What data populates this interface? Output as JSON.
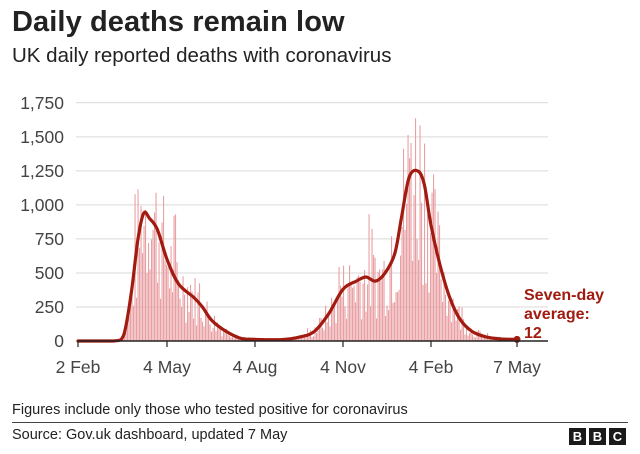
{
  "title": "Daily deaths remain low",
  "subtitle": "UK daily reported deaths with coronavirus",
  "note": "Figures include only those who tested positive for coronavirus",
  "source": "Source: Gov.uk dashboard, updated 7 May",
  "brand": [
    "B",
    "B",
    "C"
  ],
  "colors": {
    "bar": "#e8a0a3",
    "line": "#a11b10",
    "grid": "#d9d9d9",
    "axis": "#222222"
  },
  "chart_data": {
    "type": "bar",
    "title": "Daily deaths remain low",
    "subtitle": "UK daily reported deaths with coronavirus",
    "x_tick_labels": [
      "2 Feb",
      "4 May",
      "4 Aug",
      "4 Nov",
      "4 Feb",
      "7 May"
    ],
    "y_tick_labels": [
      "0",
      "250",
      "500",
      "750",
      "1,000",
      "1,250",
      "1,500",
      "1,750"
    ],
    "ylim": [
      0,
      1800
    ],
    "grid": "horizontal",
    "annotation": {
      "lines": [
        "Seven-day",
        "average:",
        "12"
      ]
    },
    "series": [
      {
        "name": "Daily deaths",
        "type": "bar"
      },
      {
        "name": "Seven-day average",
        "type": "line",
        "keypoints": [
          [
            "2020-02-02",
            0
          ],
          [
            "2020-03-10",
            0
          ],
          [
            "2020-03-20",
            40
          ],
          [
            "2020-03-28",
            350
          ],
          [
            "2020-04-04",
            750
          ],
          [
            "2020-04-10",
            940
          ],
          [
            "2020-04-16",
            900
          ],
          [
            "2020-04-24",
            820
          ],
          [
            "2020-05-04",
            600
          ],
          [
            "2020-05-16",
            420
          ],
          [
            "2020-06-01",
            320
          ],
          [
            "2020-06-10",
            250
          ],
          [
            "2020-06-20",
            150
          ],
          [
            "2020-07-05",
            70
          ],
          [
            "2020-07-20",
            20
          ],
          [
            "2020-08-04",
            12
          ],
          [
            "2020-09-01",
            10
          ],
          [
            "2020-09-20",
            30
          ],
          [
            "2020-10-05",
            70
          ],
          [
            "2020-10-20",
            200
          ],
          [
            "2020-11-04",
            380
          ],
          [
            "2020-11-18",
            440
          ],
          [
            "2020-11-28",
            470
          ],
          [
            "2020-12-08",
            440
          ],
          [
            "2020-12-18",
            500
          ],
          [
            "2020-12-28",
            640
          ],
          [
            "2021-01-04",
            900
          ],
          [
            "2021-01-12",
            1200
          ],
          [
            "2021-01-21",
            1250
          ],
          [
            "2021-01-28",
            1150
          ],
          [
            "2021-02-04",
            850
          ],
          [
            "2021-02-14",
            550
          ],
          [
            "2021-02-24",
            320
          ],
          [
            "2021-03-07",
            160
          ],
          [
            "2021-03-20",
            70
          ],
          [
            "2021-04-04",
            30
          ],
          [
            "2021-04-20",
            15
          ],
          [
            "2021-05-07",
            12
          ]
        ]
      }
    ]
  }
}
